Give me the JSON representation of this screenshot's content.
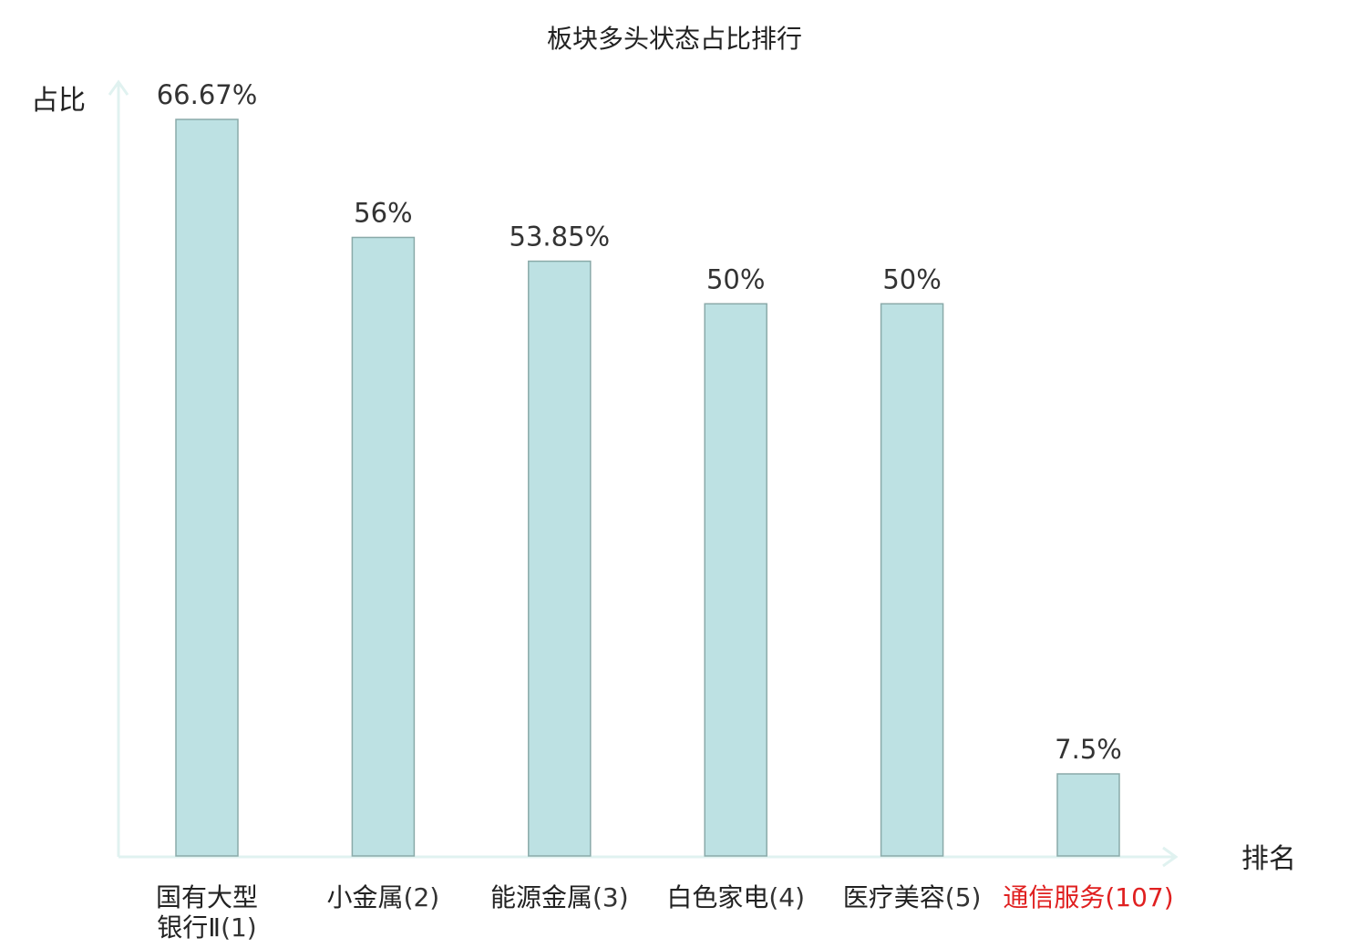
{
  "chart_data": {
    "type": "bar",
    "title": "板块多头状态占比排行",
    "xlabel": "排名",
    "ylabel": "占比",
    "ylim": [
      0,
      75
    ],
    "grid": false,
    "categories": [
      {
        "name_lines": [
          "国有大型",
          "银行Ⅱ"
        ],
        "rank": "(1)",
        "highlight": false
      },
      {
        "name_lines": [
          "小金属"
        ],
        "rank": "(2)",
        "highlight": false
      },
      {
        "name_lines": [
          "能源金属"
        ],
        "rank": "(3)",
        "highlight": false
      },
      {
        "name_lines": [
          "白色家电"
        ],
        "rank": "(4)",
        "highlight": false
      },
      {
        "name_lines": [
          "医疗美容"
        ],
        "rank": "(5)",
        "highlight": false
      },
      {
        "name_lines": [
          "通信服务"
        ],
        "rank": "(107)",
        "highlight": true
      }
    ],
    "values": [
      66.67,
      56,
      53.85,
      50,
      50,
      7.5
    ],
    "value_labels": [
      "66.67%",
      "56%",
      "53.85%",
      "50%",
      "50%",
      "7.5%"
    ]
  },
  "colors": {
    "bar_fill": "#bde1e3",
    "bar_stroke": "#8aaaa9",
    "axis": "#e0f2f0",
    "text": "#222222",
    "rank_text": "#333333",
    "highlight": "#e02020"
  }
}
